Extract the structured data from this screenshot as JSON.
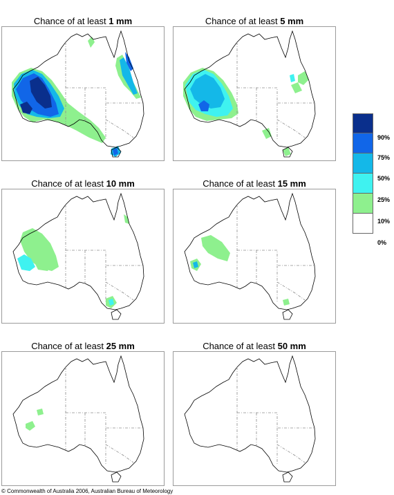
{
  "panels": [
    {
      "prefix": "Chance of at least ",
      "amount": "1 mm"
    },
    {
      "prefix": "Chance of at least ",
      "amount": "5 mm"
    },
    {
      "prefix": "Chance of at least ",
      "amount": "10 mm"
    },
    {
      "prefix": "Chance of at least ",
      "amount": "15 mm"
    },
    {
      "prefix": "Chance of at least ",
      "amount": "25 mm"
    },
    {
      "prefix": "Chance of at least ",
      "amount": "50 mm"
    }
  ],
  "legend": {
    "labels": [
      "90%",
      "75%",
      "50%",
      "25%",
      "10%",
      "0%"
    ],
    "colors": [
      "#0a2f8c",
      "#1166e8",
      "#14b8e8",
      "#3ff2f0",
      "#8ef08e",
      "#ffffff"
    ]
  },
  "footer": "© Commonwealth of Australia 2006, Australian Bureau of Meteorology",
  "colors": {
    "coast": "#000000",
    "state_border": "#8c8c8c",
    "frame": "#9a9a9a"
  }
}
